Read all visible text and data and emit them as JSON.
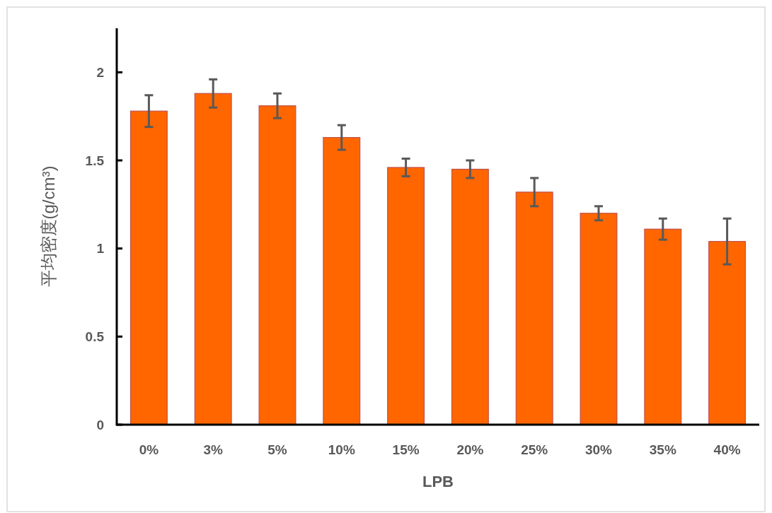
{
  "chart_data": {
    "type": "bar",
    "xlabel": "LPB",
    "ylabel": "平均密度(g/cm³)",
    "categories": [
      "0%",
      "3%",
      "5%",
      "10%",
      "15%",
      "20%",
      "25%",
      "30%",
      "35%",
      "40%"
    ],
    "values": [
      1.78,
      1.88,
      1.81,
      1.63,
      1.46,
      1.45,
      1.32,
      1.2,
      1.11,
      1.04
    ],
    "errors": [
      0.09,
      0.08,
      0.07,
      0.07,
      0.05,
      0.05,
      0.08,
      0.04,
      0.06,
      0.13
    ],
    "color": "#ff6600",
    "ylim": [
      0,
      2.25
    ],
    "yticks": [
      0,
      0.5,
      1,
      1.5,
      2
    ]
  }
}
